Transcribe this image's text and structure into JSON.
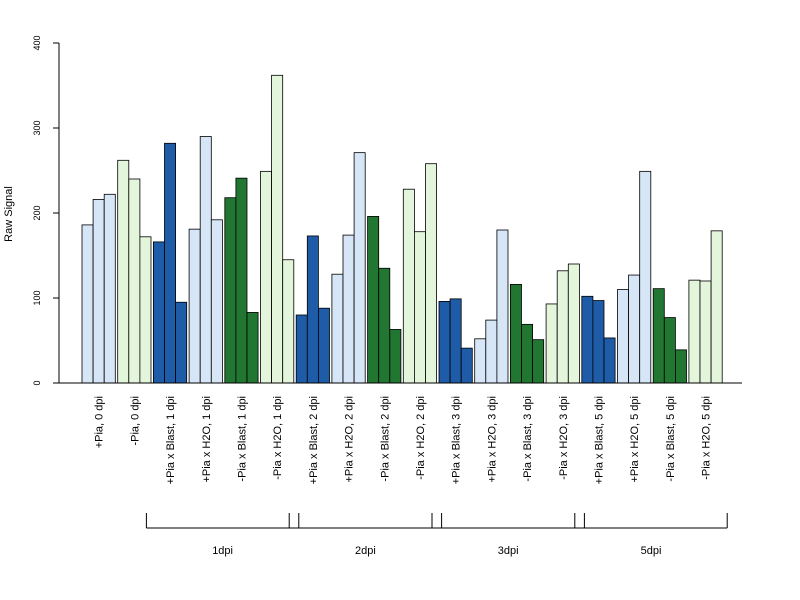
{
  "chart_data": {
    "type": "bar",
    "ylabel": "Raw Signal",
    "xlabel": "",
    "ylim": [
      0,
      400
    ],
    "yticks": [
      0,
      100,
      200,
      300,
      400
    ],
    "grid": false,
    "bars_per_category": 3,
    "colors": {
      "light_blue": "#d6e6f7",
      "dark_blue": "#1f5ca8",
      "dark_green": "#217631",
      "light_green": "#e3f6dc"
    },
    "categories": [
      {
        "label": "+Pia, 0 dpi",
        "color": "light_blue",
        "values": [
          186,
          216,
          222
        ]
      },
      {
        "label": "-Pia, 0 dpi",
        "color": "light_green",
        "values": [
          262,
          240,
          172
        ]
      },
      {
        "label": "+Pia x Blast, 1 dpi",
        "color": "dark_blue",
        "values": [
          166,
          282,
          95
        ]
      },
      {
        "label": "+Pia x H2O, 1 dpi",
        "color": "light_blue",
        "values": [
          181,
          290,
          192
        ]
      },
      {
        "label": "-Pia x Blast, 1 dpi",
        "color": "dark_green",
        "values": [
          218,
          241,
          83
        ]
      },
      {
        "label": "-Pia x H2O, 1 dpi",
        "color": "light_green",
        "values": [
          249,
          362,
          145
        ]
      },
      {
        "label": "+Pia x Blast, 2 dpi",
        "color": "dark_blue",
        "values": [
          80,
          173,
          88
        ]
      },
      {
        "label": "+Pia x H2O, 2 dpi",
        "color": "light_blue",
        "values": [
          128,
          174,
          271
        ]
      },
      {
        "label": "-Pia x Blast, 2 dpi",
        "color": "dark_green",
        "values": [
          196,
          135,
          63
        ]
      },
      {
        "label": "-Pia x H2O, 2 dpi",
        "color": "light_green",
        "values": [
          228,
          178,
          258
        ]
      },
      {
        "label": "+Pia x Blast, 3 dpi",
        "color": "dark_blue",
        "values": [
          96,
          99,
          41
        ]
      },
      {
        "label": "+Pia x H2O, 3 dpi",
        "color": "light_blue",
        "values": [
          52,
          74,
          180
        ]
      },
      {
        "label": "-Pia x Blast, 3 dpi",
        "color": "dark_green",
        "values": [
          116,
          69,
          51
        ]
      },
      {
        "label": "-Pia x H2O, 3 dpi",
        "color": "light_green",
        "values": [
          93,
          132,
          140
        ]
      },
      {
        "label": "+Pia x Blast, 5 dpi",
        "color": "dark_blue",
        "values": [
          102,
          97,
          53
        ]
      },
      {
        "label": "+Pia x H2O, 5 dpi",
        "color": "light_blue",
        "values": [
          110,
          127,
          249
        ]
      },
      {
        "label": "-Pia x Blast, 5 dpi",
        "color": "dark_green",
        "values": [
          111,
          77,
          39
        ]
      },
      {
        "label": "-Pia x H2O, 5 dpi",
        "color": "light_green",
        "values": [
          121,
          120,
          179
        ]
      }
    ],
    "groups": [
      {
        "label": "1dpi",
        "first_category": 2,
        "last_category": 5
      },
      {
        "label": "2dpi",
        "first_category": 6,
        "last_category": 9
      },
      {
        "label": "3dpi",
        "first_category": 10,
        "last_category": 13
      },
      {
        "label": "5dpi",
        "first_category": 14,
        "last_category": 17
      }
    ]
  }
}
